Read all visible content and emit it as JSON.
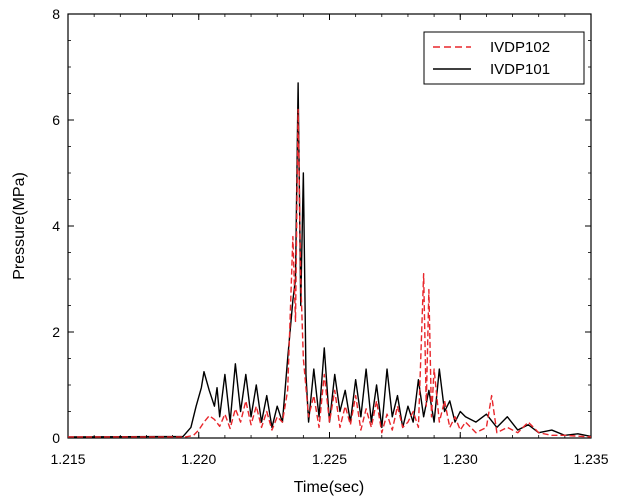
{
  "chart_data": {
    "type": "line",
    "title": "",
    "xlabel": "Time(sec)",
    "ylabel": "Pressure(MPa)",
    "xlim": [
      1.215,
      1.235
    ],
    "ylim": [
      0,
      8
    ],
    "x_ticks": [
      1.215,
      1.22,
      1.225,
      1.23,
      1.235
    ],
    "x_tick_labels": [
      "1.215",
      "1.220",
      "1.225",
      "1.230",
      "1.235"
    ],
    "y_ticks": [
      0,
      2,
      4,
      6,
      8
    ],
    "y_tick_labels": [
      "0",
      "2",
      "4",
      "6",
      "8"
    ],
    "grid": false,
    "legend_position": "top-right",
    "series": [
      {
        "name": "IVDP102",
        "color": "#e8262b",
        "style": "dashed",
        "points": [
          [
            1.215,
            0.02
          ],
          [
            1.2195,
            0.02
          ],
          [
            1.2198,
            0.05
          ],
          [
            1.22,
            0.15
          ],
          [
            1.2202,
            0.3
          ],
          [
            1.2204,
            0.42
          ],
          [
            1.2206,
            0.35
          ],
          [
            1.2208,
            0.22
          ],
          [
            1.221,
            0.45
          ],
          [
            1.2212,
            0.18
          ],
          [
            1.2214,
            0.55
          ],
          [
            1.2216,
            0.3
          ],
          [
            1.2218,
            0.7
          ],
          [
            1.222,
            0.25
          ],
          [
            1.2222,
            0.6
          ],
          [
            1.2224,
            0.2
          ],
          [
            1.2226,
            0.5
          ],
          [
            1.2228,
            0.15
          ],
          [
            1.223,
            0.4
          ],
          [
            1.2232,
            0.3
          ],
          [
            1.2234,
            0.9
          ],
          [
            1.2236,
            3.8
          ],
          [
            1.2237,
            2.2
          ],
          [
            1.2238,
            6.2
          ],
          [
            1.2239,
            3.0
          ],
          [
            1.224,
            1.5
          ],
          [
            1.2242,
            0.4
          ],
          [
            1.2244,
            0.8
          ],
          [
            1.2246,
            0.2
          ],
          [
            1.2248,
            1.2
          ],
          [
            1.225,
            0.3
          ],
          [
            1.2252,
            0.9
          ],
          [
            1.2254,
            0.2
          ],
          [
            1.2256,
            0.6
          ],
          [
            1.2258,
            0.25
          ],
          [
            1.226,
            0.8
          ],
          [
            1.2262,
            0.15
          ],
          [
            1.2264,
            0.55
          ],
          [
            1.2266,
            0.2
          ],
          [
            1.2268,
            0.7
          ],
          [
            1.227,
            0.1
          ],
          [
            1.2272,
            0.45
          ],
          [
            1.2274,
            0.15
          ],
          [
            1.2276,
            0.6
          ],
          [
            1.2278,
            0.2
          ],
          [
            1.228,
            0.3
          ],
          [
            1.2282,
            0.5
          ],
          [
            1.2284,
            0.2
          ],
          [
            1.2286,
            3.1
          ],
          [
            1.2287,
            0.6
          ],
          [
            1.2288,
            2.8
          ],
          [
            1.2289,
            0.4
          ],
          [
            1.229,
            1.3
          ],
          [
            1.2292,
            0.3
          ],
          [
            1.2294,
            0.7
          ],
          [
            1.2296,
            0.2
          ],
          [
            1.2298,
            0.4
          ],
          [
            1.23,
            0.15
          ],
          [
            1.2302,
            0.3
          ],
          [
            1.2306,
            0.1
          ],
          [
            1.231,
            0.2
          ],
          [
            1.2312,
            0.8
          ],
          [
            1.2314,
            0.1
          ],
          [
            1.2318,
            0.2
          ],
          [
            1.2322,
            0.1
          ],
          [
            1.2326,
            0.3
          ],
          [
            1.233,
            0.1
          ],
          [
            1.2335,
            0.05
          ],
          [
            1.234,
            0.05
          ],
          [
            1.235,
            0.02
          ]
        ]
      },
      {
        "name": "IVDP101",
        "color": "#000000",
        "style": "solid",
        "points": [
          [
            1.215,
            0.02
          ],
          [
            1.2194,
            0.03
          ],
          [
            1.2197,
            0.2
          ],
          [
            1.2199,
            0.6
          ],
          [
            1.2201,
            0.95
          ],
          [
            1.2202,
            1.25
          ],
          [
            1.2204,
            0.9
          ],
          [
            1.2206,
            0.6
          ],
          [
            1.2207,
            0.95
          ],
          [
            1.2208,
            0.4
          ],
          [
            1.221,
            1.2
          ],
          [
            1.2212,
            0.3
          ],
          [
            1.2214,
            1.4
          ],
          [
            1.2216,
            0.5
          ],
          [
            1.2218,
            1.2
          ],
          [
            1.222,
            0.4
          ],
          [
            1.2222,
            1.0
          ],
          [
            1.2224,
            0.3
          ],
          [
            1.2226,
            0.8
          ],
          [
            1.2228,
            0.2
          ],
          [
            1.223,
            0.6
          ],
          [
            1.2232,
            0.3
          ],
          [
            1.2234,
            1.5
          ],
          [
            1.2236,
            2.6
          ],
          [
            1.2237,
            3.0
          ],
          [
            1.2238,
            6.7
          ],
          [
            1.2239,
            2.5
          ],
          [
            1.224,
            5.0
          ],
          [
            1.2241,
            1.2
          ],
          [
            1.2242,
            0.3
          ],
          [
            1.2244,
            1.3
          ],
          [
            1.2246,
            0.4
          ],
          [
            1.2248,
            1.7
          ],
          [
            1.225,
            0.3
          ],
          [
            1.2252,
            1.2
          ],
          [
            1.2254,
            0.5
          ],
          [
            1.2256,
            0.9
          ],
          [
            1.2258,
            0.3
          ],
          [
            1.226,
            1.1
          ],
          [
            1.2262,
            0.4
          ],
          [
            1.2264,
            1.3
          ],
          [
            1.2266,
            0.3
          ],
          [
            1.2268,
            1.0
          ],
          [
            1.227,
            0.2
          ],
          [
            1.2272,
            1.3
          ],
          [
            1.2274,
            0.4
          ],
          [
            1.2276,
            0.8
          ],
          [
            1.2278,
            0.2
          ],
          [
            1.228,
            0.6
          ],
          [
            1.2282,
            0.3
          ],
          [
            1.2284,
            1.1
          ],
          [
            1.2286,
            0.4
          ],
          [
            1.2288,
            0.9
          ],
          [
            1.229,
            0.3
          ],
          [
            1.2292,
            1.3
          ],
          [
            1.2294,
            0.5
          ],
          [
            1.2296,
            0.7
          ],
          [
            1.2298,
            0.3
          ],
          [
            1.23,
            0.5
          ],
          [
            1.2302,
            0.4
          ],
          [
            1.2306,
            0.3
          ],
          [
            1.231,
            0.45
          ],
          [
            1.2314,
            0.2
          ],
          [
            1.2318,
            0.4
          ],
          [
            1.2322,
            0.15
          ],
          [
            1.2326,
            0.25
          ],
          [
            1.233,
            0.1
          ],
          [
            1.2335,
            0.15
          ],
          [
            1.234,
            0.05
          ],
          [
            1.2345,
            0.08
          ],
          [
            1.235,
            0.03
          ]
        ]
      }
    ]
  }
}
